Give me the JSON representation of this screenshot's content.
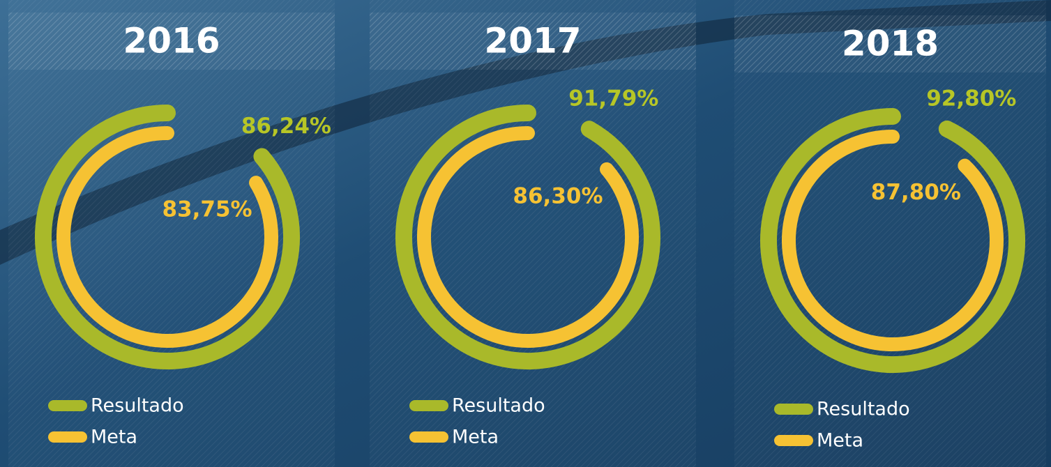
{
  "chart_data": [
    {
      "type": "radial",
      "title": "2016",
      "ylim": [
        0,
        100
      ],
      "series": [
        {
          "name": "Resultado",
          "color": "#a9b92a",
          "values": [
            86.24
          ],
          "value_labels": [
            "86,24%"
          ]
        },
        {
          "name": "Meta",
          "color": "#f6c233",
          "values": [
            83.75
          ],
          "value_labels": [
            "83,75%"
          ]
        }
      ]
    },
    {
      "type": "radial",
      "title": "2017",
      "ylim": [
        0,
        100
      ],
      "series": [
        {
          "name": "Resultado",
          "color": "#a9b92a",
          "values": [
            91.79
          ],
          "value_labels": [
            "91,79%"
          ]
        },
        {
          "name": "Meta",
          "color": "#f6c233",
          "values": [
            86.3
          ],
          "value_labels": [
            "86,30%"
          ]
        }
      ]
    },
    {
      "type": "radial",
      "title": "2018",
      "ylim": [
        0,
        100
      ],
      "series": [
        {
          "name": "Resultado",
          "color": "#a9b92a",
          "values": [
            92.8
          ],
          "value_labels": [
            "92,80%"
          ]
        },
        {
          "name": "Meta",
          "color": "#f6c233",
          "values": [
            87.8
          ],
          "value_labels": [
            "87,80%"
          ]
        }
      ]
    }
  ]
}
